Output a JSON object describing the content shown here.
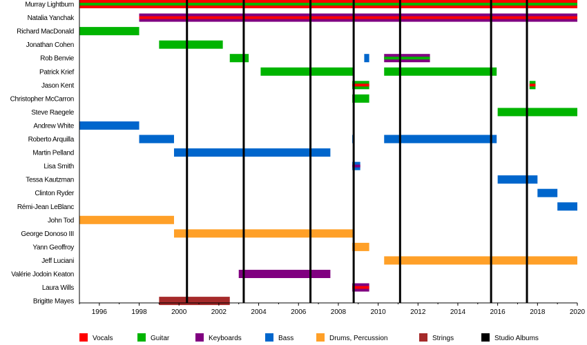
{
  "chart_data": {
    "type": "timeline",
    "title": "",
    "xlim": [
      1995,
      2020
    ],
    "x_ticks": [
      "1996",
      "1998",
      "2000",
      "2002",
      "2004",
      "2006",
      "2008",
      "2010",
      "2012",
      "2014",
      "2016",
      "2018",
      "2020"
    ],
    "colors": {
      "Vocals": "#ff0000",
      "Guitar": "#00b400",
      "Keyboards": "#800080",
      "Bass": "#0066cc",
      "Drums": "#ffa028",
      "Strings": "#a52a2a",
      "Albums": "#000000"
    },
    "legend": [
      {
        "label": "Vocals",
        "key": "Vocals"
      },
      {
        "label": "Guitar",
        "key": "Guitar"
      },
      {
        "label": "Keyboards",
        "key": "Keyboards"
      },
      {
        "label": "Bass",
        "key": "Bass"
      },
      {
        "label": "Drums, Percussion",
        "key": "Drums"
      },
      {
        "label": "Strings",
        "key": "Strings"
      },
      {
        "label": "Studio Albums",
        "key": "Albums"
      }
    ],
    "studio_albums": [
      2000.4,
      2003.25,
      2006.6,
      2008.77,
      2011.1,
      2015.67,
      2017.47
    ],
    "members": [
      {
        "name": "Murray Lightburn",
        "bars": [
          {
            "start": 1995,
            "end": 2020,
            "roles": [
              "Vocals",
              "Guitar"
            ]
          }
        ]
      },
      {
        "name": "Natalia Yanchak",
        "bars": [
          {
            "start": 1998,
            "end": 2020,
            "roles": [
              "Keyboards",
              "Vocals"
            ]
          }
        ]
      },
      {
        "name": "Richard MacDonald",
        "bars": [
          {
            "start": 1995,
            "end": 1998,
            "roles": [
              "Guitar"
            ]
          }
        ]
      },
      {
        "name": "Jonathan Cohen",
        "bars": [
          {
            "start": 1999,
            "end": 2002.2,
            "roles": [
              "Guitar"
            ]
          }
        ]
      },
      {
        "name": "Rob Benvie",
        "bars": [
          {
            "start": 2002.55,
            "end": 2003.5,
            "roles": [
              "Guitar"
            ]
          },
          {
            "start": 2009.3,
            "end": 2009.55,
            "roles": [
              "Bass"
            ]
          },
          {
            "start": 2010.3,
            "end": 2012.6,
            "roles": [
              "Keyboards",
              "Guitar"
            ]
          }
        ]
      },
      {
        "name": "Patrick Krief",
        "bars": [
          {
            "start": 2004.1,
            "end": 2008.77,
            "roles": [
              "Guitar"
            ]
          },
          {
            "start": 2010.3,
            "end": 2015.95,
            "roles": [
              "Guitar"
            ]
          }
        ]
      },
      {
        "name": "Jason Kent",
        "bars": [
          {
            "start": 2008.7,
            "end": 2009.55,
            "roles": [
              "Guitar",
              "Vocals"
            ]
          },
          {
            "start": 2017.6,
            "end": 2017.9,
            "roles": [
              "Guitar",
              "Vocals"
            ]
          }
        ]
      },
      {
        "name": "Christopher McCarron",
        "bars": [
          {
            "start": 2008.7,
            "end": 2009.55,
            "roles": [
              "Guitar"
            ]
          }
        ]
      },
      {
        "name": "Steve Raegele",
        "bars": [
          {
            "start": 2016,
            "end": 2020,
            "roles": [
              "Guitar"
            ]
          }
        ]
      },
      {
        "name": "Andrew White",
        "bars": [
          {
            "start": 1995,
            "end": 1998,
            "roles": [
              "Bass"
            ]
          }
        ]
      },
      {
        "name": "Roberto Arquilla",
        "bars": [
          {
            "start": 1998,
            "end": 1999.75,
            "roles": [
              "Bass"
            ]
          },
          {
            "start": 2008.7,
            "end": 2008.8,
            "roles": [
              "Bass"
            ]
          },
          {
            "start": 2010.3,
            "end": 2015.95,
            "roles": [
              "Bass"
            ]
          }
        ]
      },
      {
        "name": "Martin Pelland",
        "bars": [
          {
            "start": 1999.75,
            "end": 2007.6,
            "roles": [
              "Bass"
            ]
          }
        ]
      },
      {
        "name": "Lisa Smith",
        "bars": [
          {
            "start": 2008.7,
            "end": 2009.1,
            "roles": [
              "Bass",
              "Keyboards"
            ]
          }
        ]
      },
      {
        "name": "Tessa Kautzman",
        "bars": [
          {
            "start": 2016,
            "end": 2018,
            "roles": [
              "Bass"
            ]
          }
        ]
      },
      {
        "name": "Clinton Ryder",
        "bars": [
          {
            "start": 2018,
            "end": 2019,
            "roles": [
              "Bass"
            ]
          }
        ]
      },
      {
        "name": "Rémi-Jean LeBlanc",
        "bars": [
          {
            "start": 2019,
            "end": 2020,
            "roles": [
              "Bass"
            ]
          }
        ]
      },
      {
        "name": "John Tod",
        "bars": [
          {
            "start": 1995,
            "end": 1999.75,
            "roles": [
              "Drums"
            ]
          }
        ]
      },
      {
        "name": "George Donoso III",
        "bars": [
          {
            "start": 1999.75,
            "end": 2008.77,
            "roles": [
              "Drums"
            ]
          }
        ]
      },
      {
        "name": "Yann Geoffroy",
        "bars": [
          {
            "start": 2008.7,
            "end": 2009.55,
            "roles": [
              "Drums"
            ]
          }
        ]
      },
      {
        "name": "Jeff Luciani",
        "bars": [
          {
            "start": 2010.3,
            "end": 2020,
            "roles": [
              "Drums"
            ]
          }
        ]
      },
      {
        "name": "Valérie Jodoin Keaton",
        "bars": [
          {
            "start": 2003,
            "end": 2007.6,
            "roles": [
              "Keyboards"
            ]
          }
        ]
      },
      {
        "name": "Laura Wills",
        "bars": [
          {
            "start": 2008.7,
            "end": 2009.55,
            "roles": [
              "Keyboards",
              "Vocals"
            ]
          }
        ]
      },
      {
        "name": "Brigitte Mayes",
        "bars": [
          {
            "start": 1999,
            "end": 2002.55,
            "roles": [
              "Strings"
            ]
          }
        ]
      }
    ]
  }
}
